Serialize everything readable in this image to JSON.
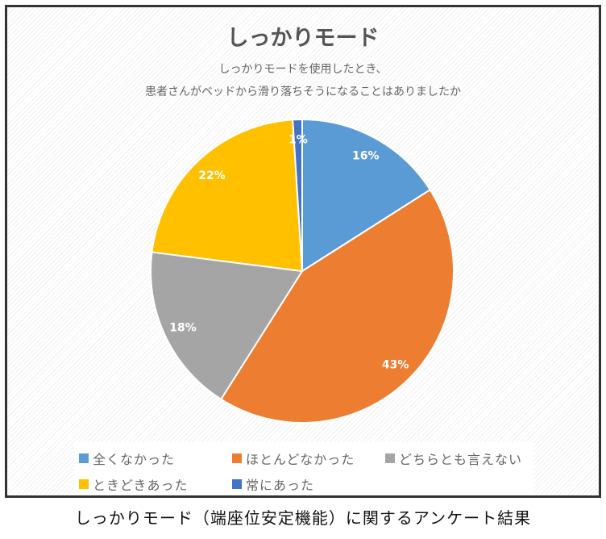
{
  "chart_data": {
    "type": "pie",
    "title": "しっかりモード",
    "subtitle": [
      "しっかりモードを使用したとき、",
      "患者さんがベッドから滑り落ちそうになることはありましたか"
    ],
    "categories": [
      "全くなかった",
      "ほとんどなかった",
      "どちらとも言えない",
      "ときどきあった",
      "常にあった"
    ],
    "values": [
      16,
      43,
      18,
      22,
      1
    ],
    "data_labels": [
      "16%",
      "43%",
      "18%",
      "22%",
      "1%"
    ],
    "colors": [
      "#5B9BD5",
      "#ED7D31",
      "#A5A5A5",
      "#FFC000",
      "#4472C4"
    ],
    "legend_position": "bottom"
  },
  "caption": "しっかりモード（端座位安定機能）に関するアンケート結果"
}
